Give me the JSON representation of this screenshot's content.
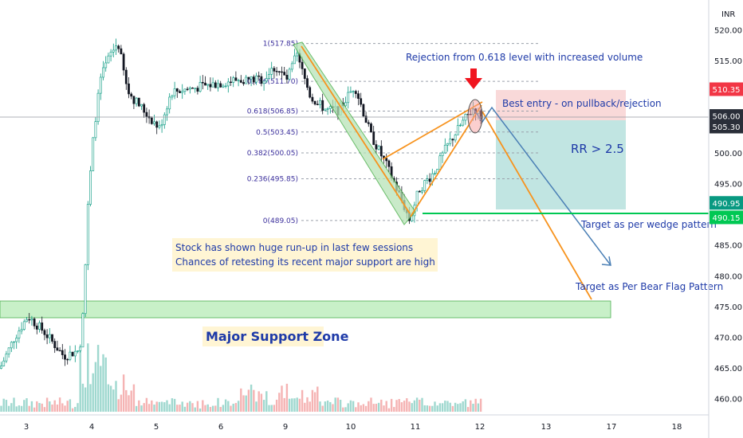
{
  "chart_data": {
    "type": "candlestick",
    "currency": "INR",
    "x_ticks": [
      "3",
      "4",
      "5",
      "6",
      "9",
      "10",
      "11",
      "12",
      "13",
      "17",
      "18"
    ],
    "y_ticks": [
      460,
      465,
      470,
      475,
      480,
      485,
      490,
      495,
      500,
      505,
      510,
      515,
      520
    ],
    "ylim": [
      457.5,
      522.5
    ],
    "price_labels": [
      {
        "text": "510.35",
        "value": 510.35,
        "color": "#f23645"
      },
      {
        "text": "506.00",
        "value": 506.0,
        "color": "#2a2e39"
      },
      {
        "text": "505.30",
        "value": 505.3,
        "color": "#2a2e39"
      },
      {
        "text": "490.95",
        "value": 490.95,
        "color": "#089981"
      },
      {
        "text": "490.15",
        "value": 490.15,
        "color": "#00c853"
      }
    ],
    "fib_levels": [
      {
        "label": "1(517.85)",
        "value": 517.85
      },
      {
        "label": "0.786(511.70)",
        "value": 511.7
      },
      {
        "label": "0.618(506.85)",
        "value": 506.85
      },
      {
        "label": "0.5(503.45)",
        "value": 503.45
      },
      {
        "label": "0.382(500.05)",
        "value": 500.05
      },
      {
        "label": "0.236(495.85)",
        "value": 495.85
      },
      {
        "label": "0(489.05)",
        "value": 489.05
      }
    ],
    "annotations": [
      {
        "key": "rejection",
        "text": "Rejection from 0.618 level with increased volume"
      },
      {
        "key": "entry",
        "text": "Best entry - on pullback/rejection"
      },
      {
        "key": "rr",
        "text": "RR > 2.5"
      },
      {
        "key": "wedge",
        "text": "Target as per wedge pattern"
      },
      {
        "key": "flag",
        "text": "Target as Per Bear Flag Pattern"
      },
      {
        "key": "runup1",
        "text": "Stock has shown huge run-up in last few sessions"
      },
      {
        "key": "runup2",
        "text": "Chances of retesting its recent major support are high"
      },
      {
        "key": "support",
        "text": "Major Support Zone"
      }
    ],
    "colors": {
      "up": "#089981",
      "down": "#131722",
      "fib": "#9aa0ab",
      "support_zone": "#c8f0c8",
      "target_zone": "#b2dfdb",
      "stop_zone": "#f8c8c8",
      "trend": "#f7931e",
      "projection": "#4a7fb5",
      "support_line": "#00c853",
      "arrow": "#f0141e"
    }
  }
}
